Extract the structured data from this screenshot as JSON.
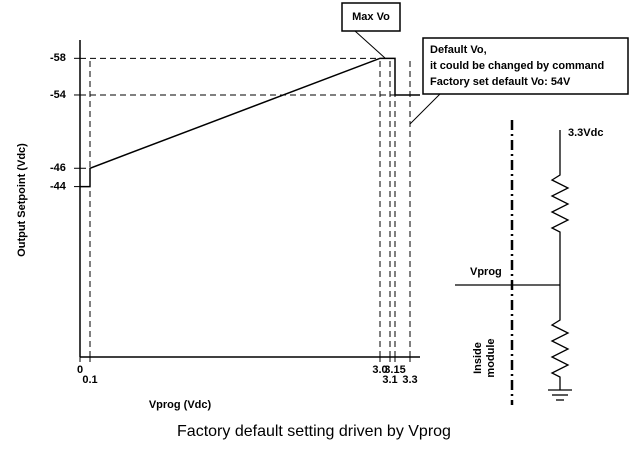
{
  "chart_data": {
    "type": "line",
    "xlabel": "Vprog (Vdc)",
    "ylabel": "Output Setpoint (Vdc)",
    "x": [
      0,
      0.1,
      0.1,
      3.0,
      3.15,
      3.15,
      3.4
    ],
    "series": [
      {
        "color": "#000000",
        "values": [
          -44,
          -44,
          -46,
          -58,
          -58,
          -54,
          -54
        ]
      }
    ],
    "xlim": [
      0,
      3.4
    ],
    "xticks": [
      0,
      0.1,
      {
        "value": 3.0,
        "label": "3.0"
      },
      3.1,
      3.15,
      3.3
    ],
    "ylim": [
      -25.4,
      -60
    ],
    "yticks": [
      -58,
      -54,
      -46,
      -44
    ],
    "annotations": [
      {
        "text": "Max Vo"
      },
      {
        "lines": [
          "Default Vo,",
          "it could be changed by command",
          "Factory set default Vo: 54V"
        ]
      }
    ]
  },
  "circuit": {
    "supply": "3.3Vdc",
    "input": "Vprog",
    "region": [
      "Inside",
      "module"
    ]
  },
  "caption": "Factory default setting driven by Vprog"
}
